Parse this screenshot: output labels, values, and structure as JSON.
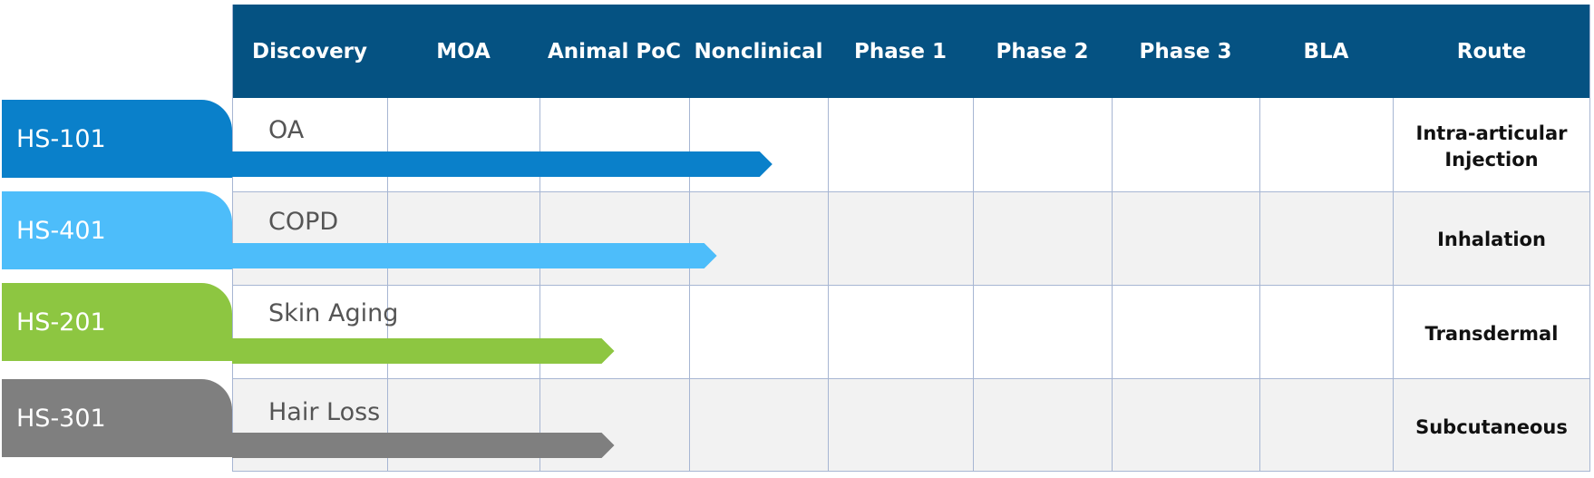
{
  "header": {
    "columns": [
      "Discovery",
      "MOA",
      "Animal PoC",
      "Nonclinical",
      "Phase 1",
      "Phase 2",
      "Phase 3",
      "BLA",
      "Route"
    ]
  },
  "colors": {
    "header_bg": "#055282",
    "header_text": "#ffffff",
    "grid_line": "#a7b6d3",
    "row_alt_bg": "#f2f2f2"
  },
  "programs": [
    {
      "code": "HS-101",
      "indication": "OA",
      "route": "Intra-articular\nInjection",
      "stage_reached": "Nonclinical",
      "stage_progress": 0.6,
      "color": "#0a80ca"
    },
    {
      "code": "HS-401",
      "indication": "COPD",
      "route": "Inhalation",
      "stage_reached": "Nonclinical",
      "stage_progress": 0.2,
      "color": "#4dbdfa"
    },
    {
      "code": "HS-201",
      "indication": "Skin Aging",
      "route": "Transdermal",
      "stage_reached": "Animal PoC",
      "stage_progress": 0.5,
      "color": "#8dc641"
    },
    {
      "code": "HS-301",
      "indication": "Hair Loss",
      "route": "Subcutaneous",
      "stage_reached": "Animal PoC",
      "stage_progress": 0.5,
      "color": "#7f7f7f"
    }
  ]
}
